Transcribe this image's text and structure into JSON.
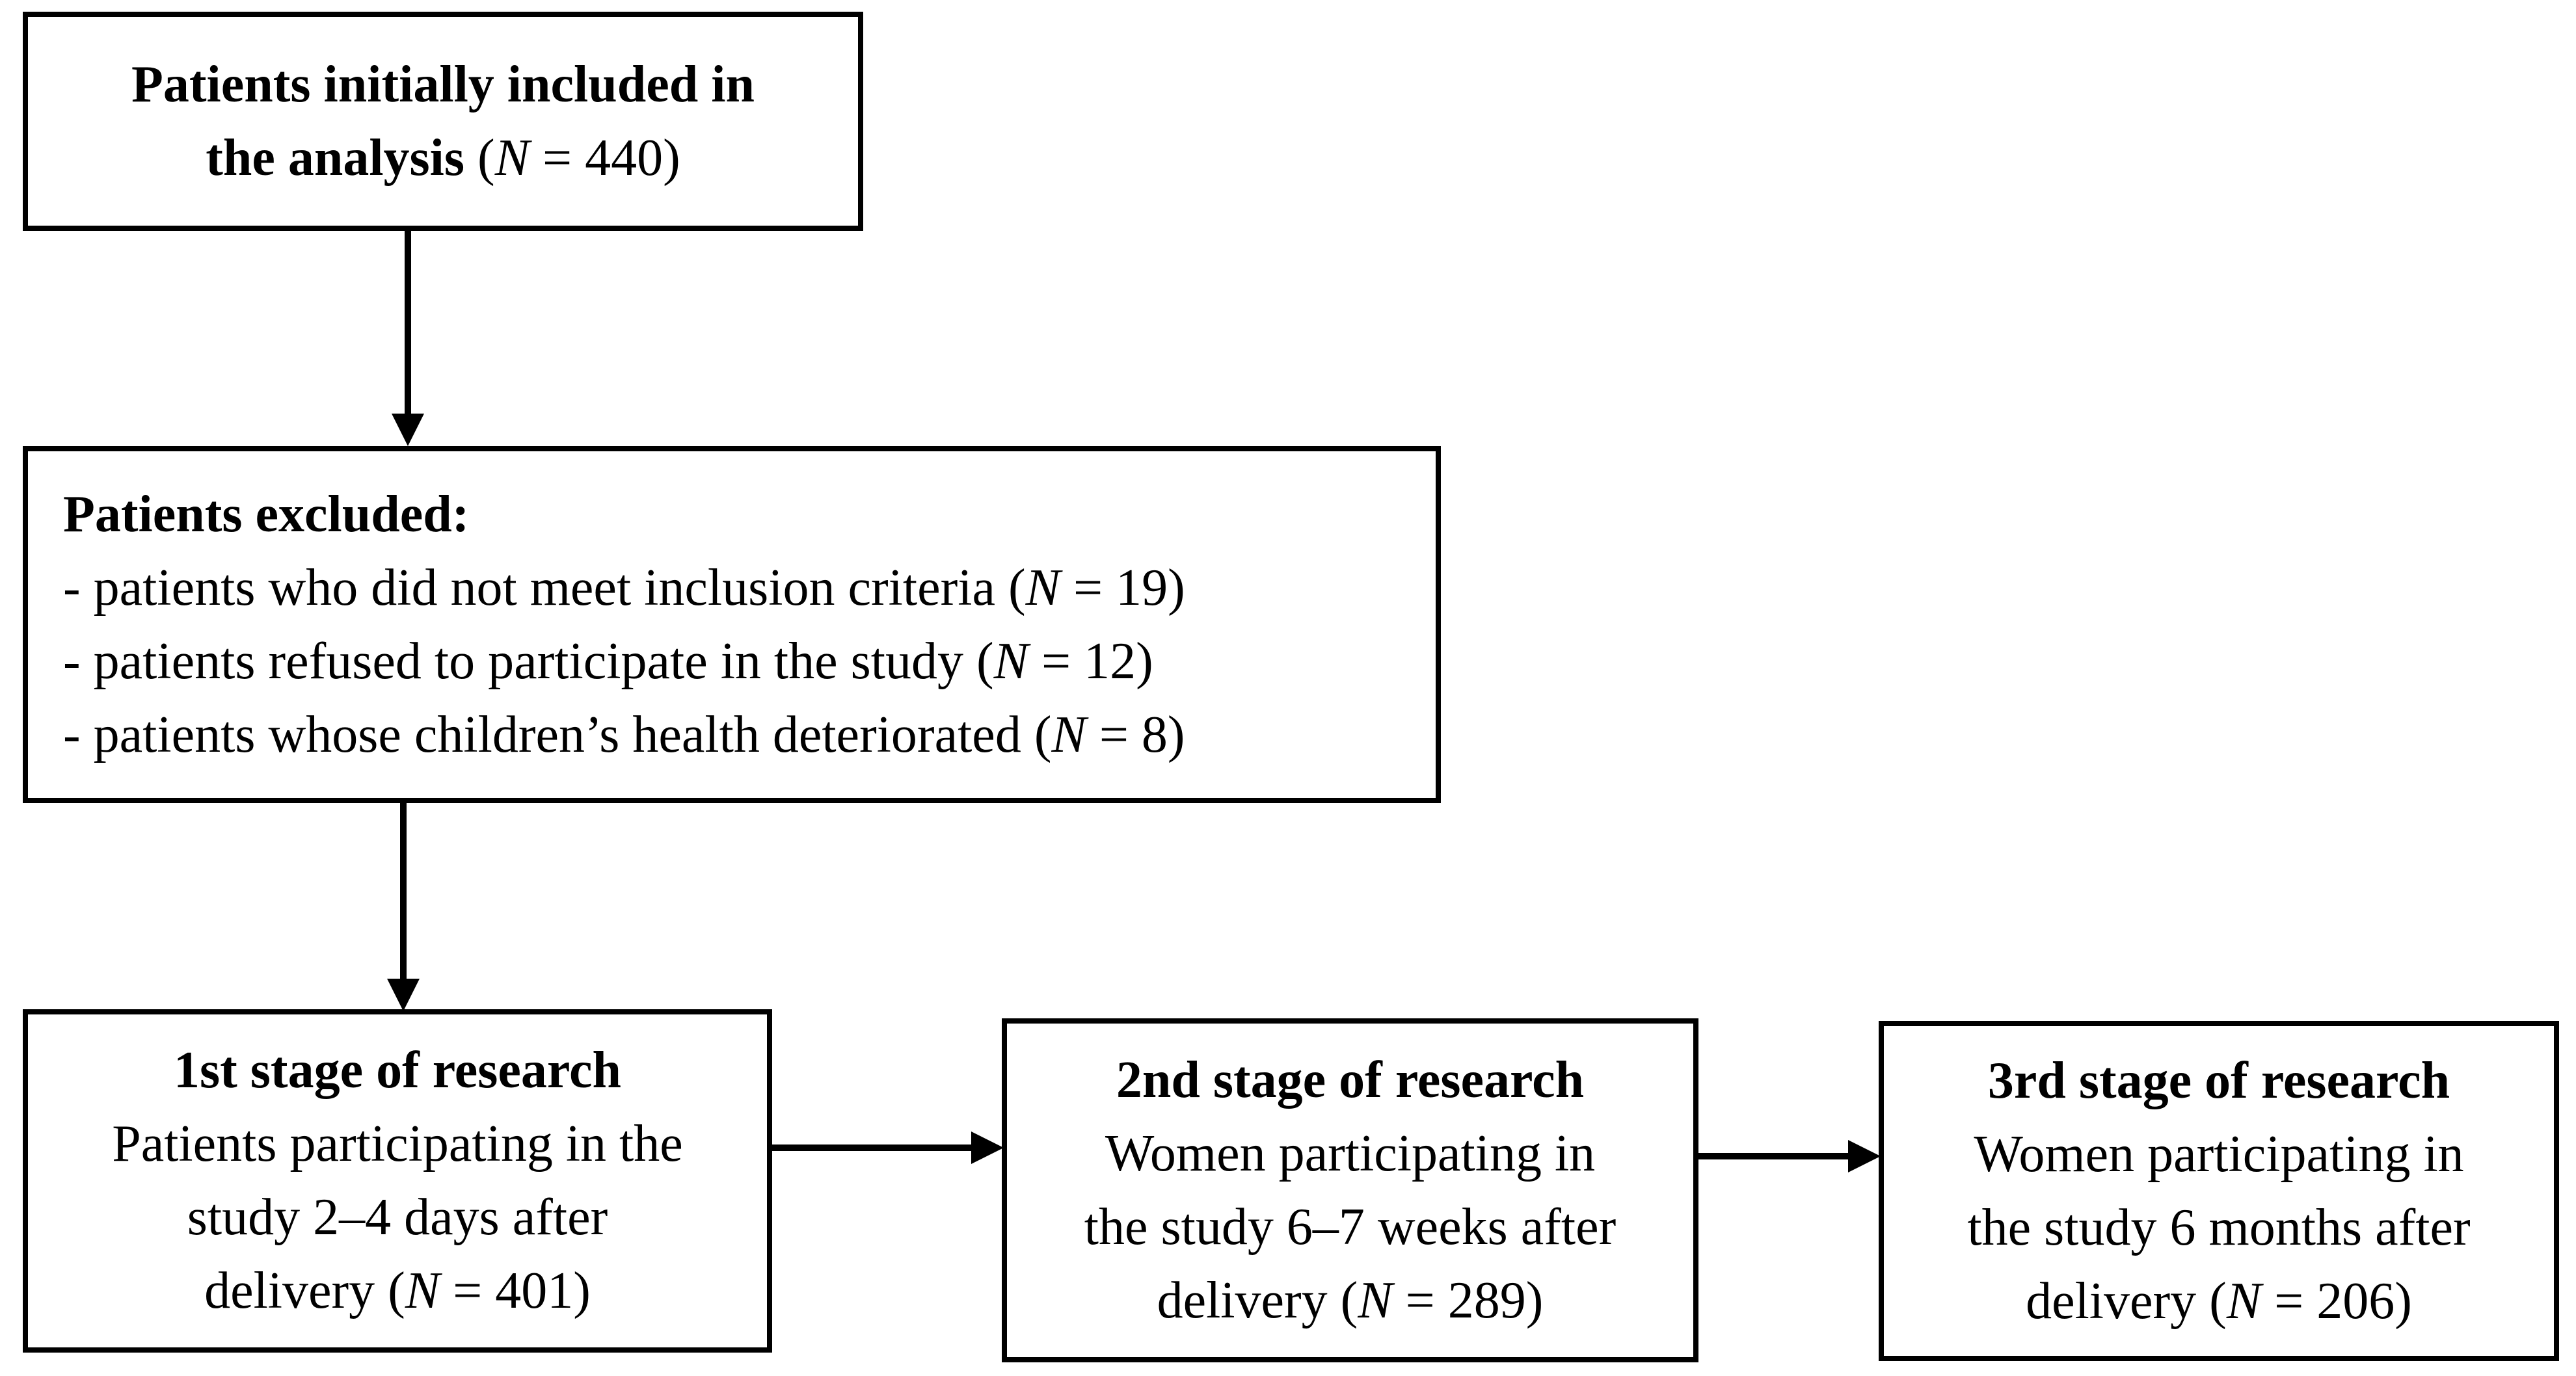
{
  "figure": {
    "background": "#ffffff",
    "ink": "#000000",
    "type": "study-flow-diagram"
  },
  "nodes": {
    "initial": {
      "lines": [
        [
          {
            "t": "Patients initially included in"
          }
        ],
        [
          {
            "t": "the analysis "
          },
          {
            "t": "("
          },
          {
            "t": "N"
          },
          {
            "t": " = 440)"
          }
        ]
      ]
    },
    "excluded": {
      "lines": [
        [
          {
            "t": "Patients excluded:"
          }
        ],
        [
          {
            "t": "- patients who did not meet inclusion criteria ("
          },
          {
            "t": "N"
          },
          {
            "t": " = 19)"
          }
        ],
        [
          {
            "t": "- patients refused to participate in the study ("
          },
          {
            "t": "N"
          },
          {
            "t": " = 12)"
          }
        ],
        [
          {
            "t": "- patients whose children’s health deteriorated ("
          },
          {
            "t": "N"
          },
          {
            "t": " = 8)"
          }
        ]
      ]
    },
    "stage1": {
      "lines": [
        [
          {
            "t": "1st stage of research"
          }
        ],
        [
          {
            "t": "Patients participating in the"
          }
        ],
        [
          {
            "t": "study 2–4 days after"
          }
        ],
        [
          {
            "t": "delivery ("
          },
          {
            "t": "N"
          },
          {
            "t": " = 401)"
          }
        ]
      ]
    },
    "stage2": {
      "lines": [
        [
          {
            "t": "2nd stage of research"
          }
        ],
        [
          {
            "t": "Women participating in"
          }
        ],
        [
          {
            "t": "the study 6–7 weeks after"
          }
        ],
        [
          {
            "t": "delivery ("
          },
          {
            "t": "N"
          },
          {
            "t": " = 289)"
          }
        ]
      ]
    },
    "stage3": {
      "lines": [
        [
          {
            "t": "3rd stage of research"
          }
        ],
        [
          {
            "t": "Women participating in"
          }
        ],
        [
          {
            "t": "the study 6 months after"
          }
        ],
        [
          {
            "t": "delivery ("
          },
          {
            "t": "N"
          },
          {
            "t": " = 206)"
          }
        ]
      ]
    }
  },
  "arrows": [
    {
      "from": "initial",
      "to": "excluded",
      "direction": "down"
    },
    {
      "from": "excluded",
      "to": "stage1",
      "direction": "down"
    },
    {
      "from": "stage1",
      "to": "stage2",
      "direction": "right"
    },
    {
      "from": "stage2",
      "to": "stage3",
      "direction": "right"
    }
  ]
}
